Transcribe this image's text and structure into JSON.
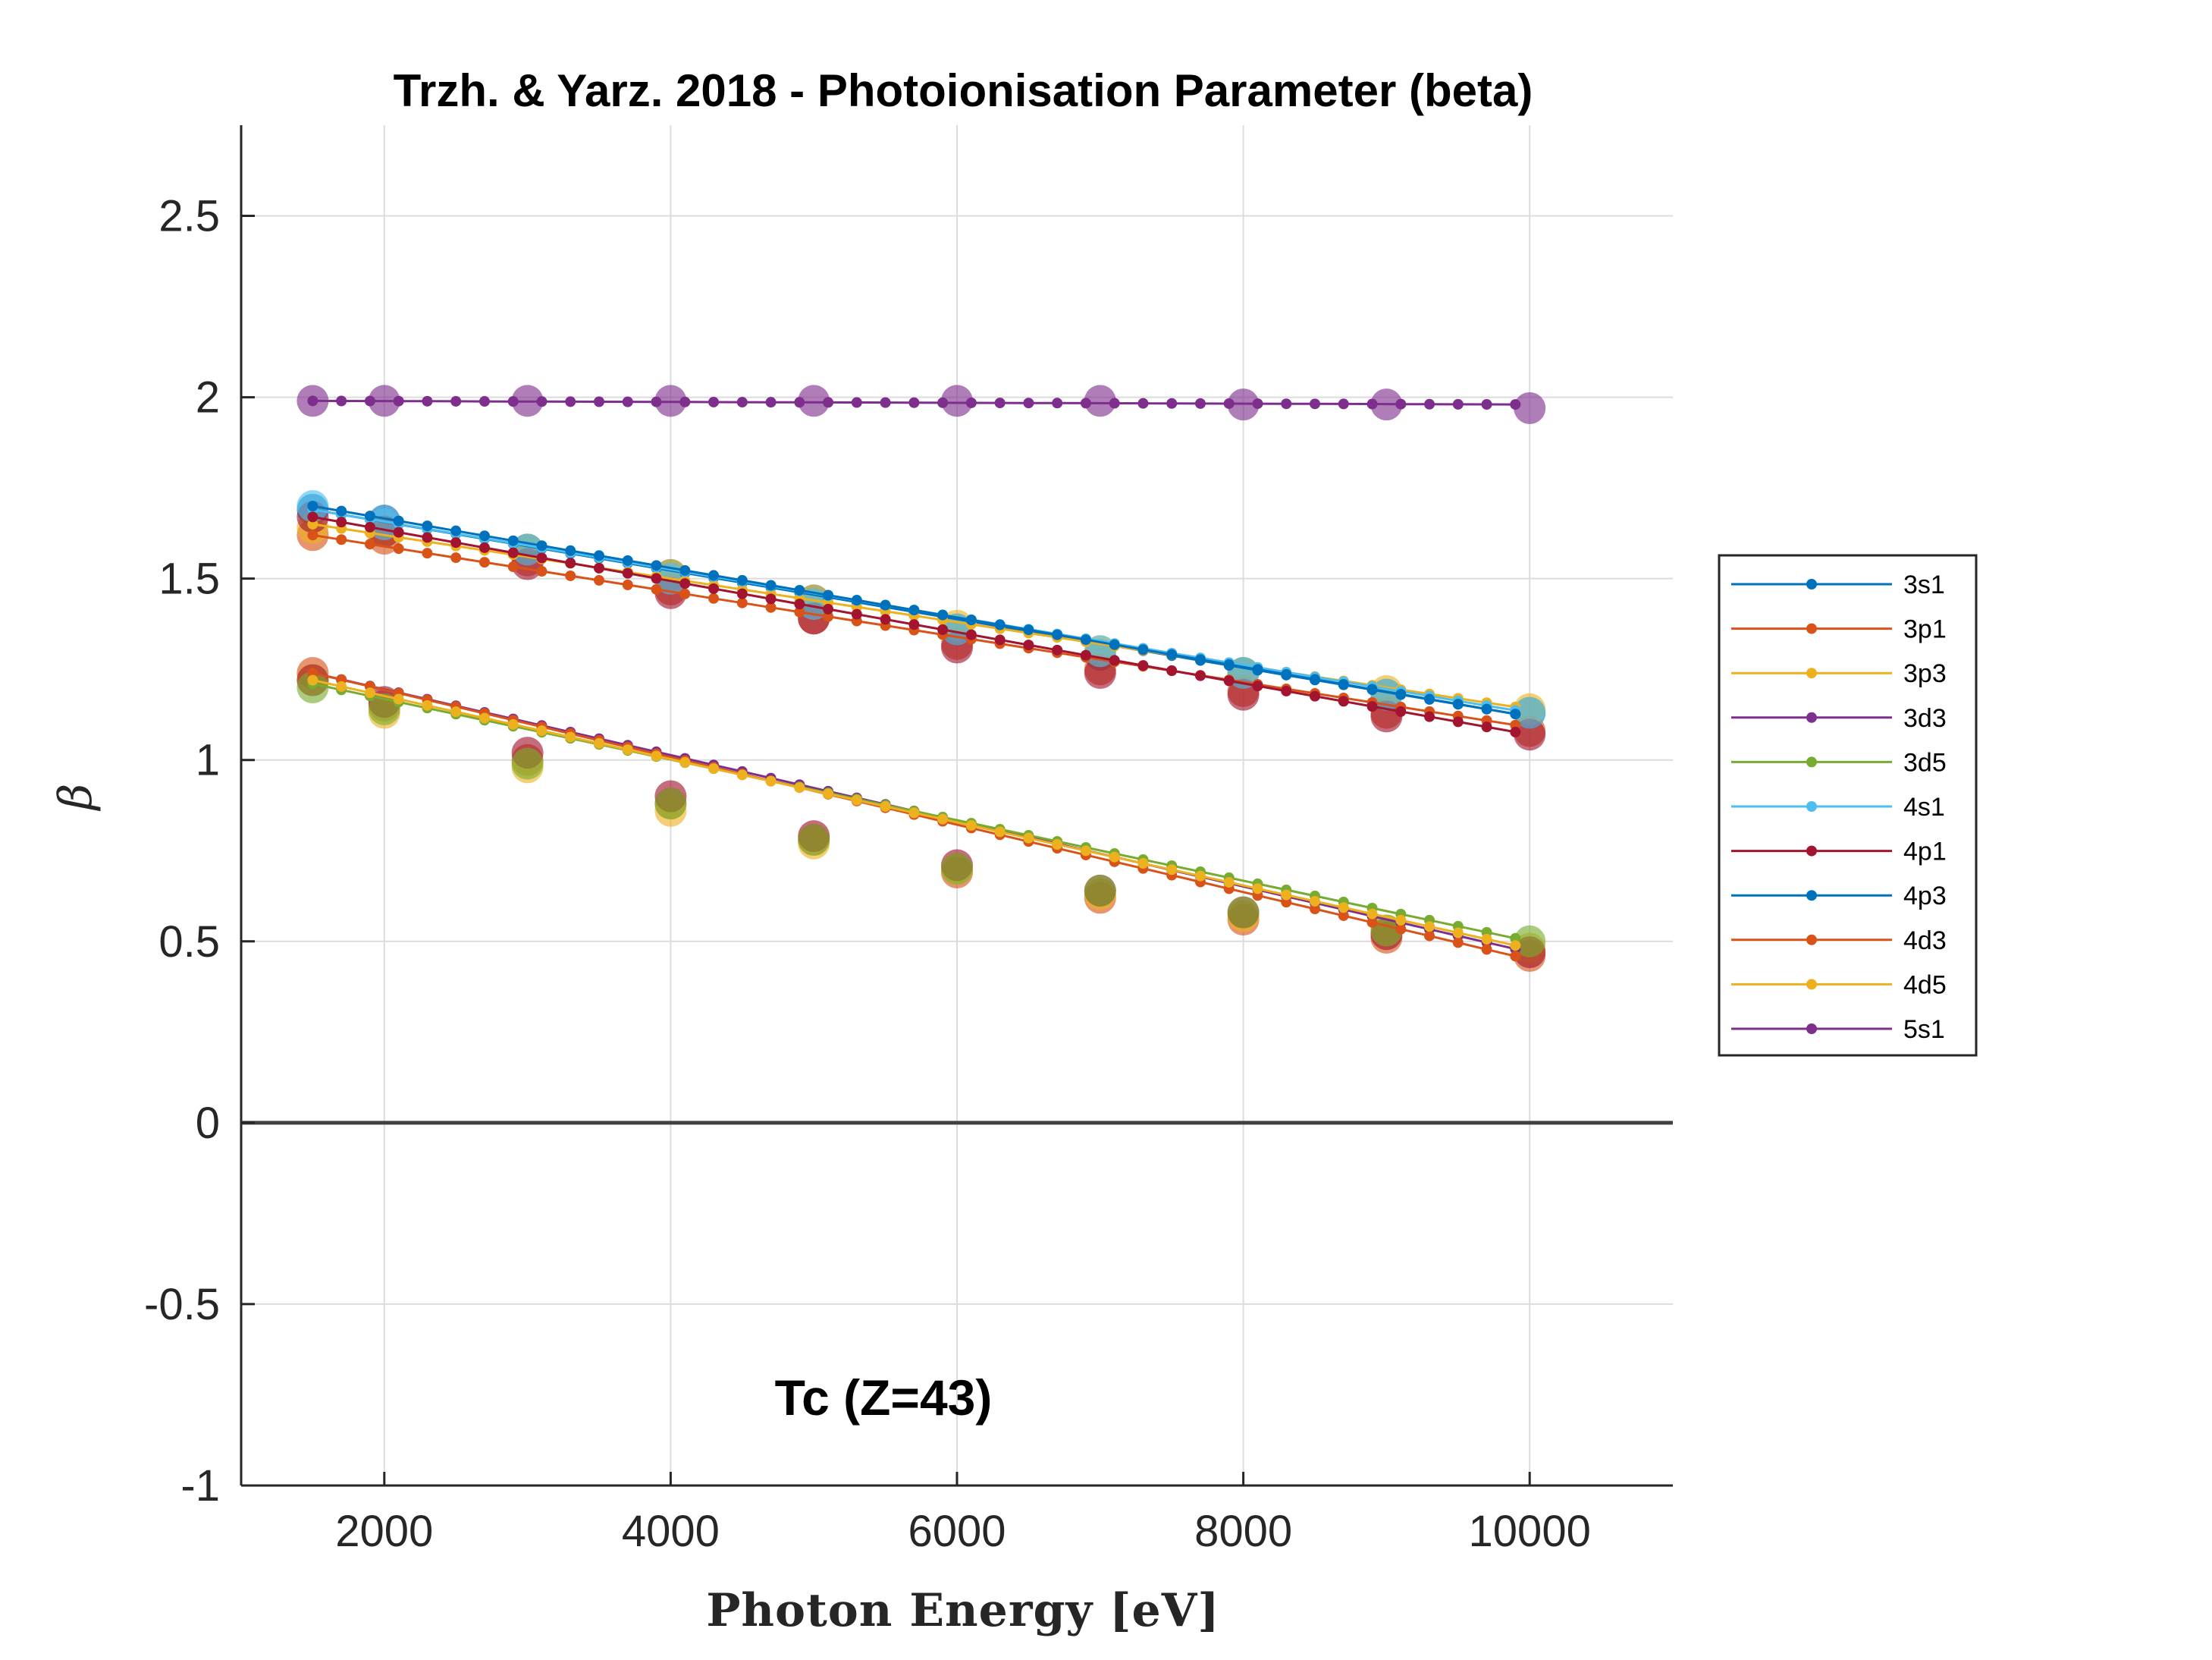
{
  "chart_data": {
    "type": "line",
    "title": "Trzh. & Yarz. 2018 - Photoionisation Parameter (beta)",
    "xlabel": "Photon Energy [eV]",
    "ylabel": "β",
    "xlim": [
      1000,
      11000
    ],
    "ylim": [
      -1,
      2.75
    ],
    "xticks": [
      2000,
      4000,
      6000,
      8000,
      10000
    ],
    "xtick_labels": [
      "2000",
      "4000",
      "6000",
      "8000",
      "10000"
    ],
    "yticks": [
      -1,
      -0.5,
      0,
      0.5,
      1,
      1.5,
      2,
      2.5
    ],
    "ytick_labels": [
      "-1",
      "-0.5",
      "0",
      "0.5",
      "1",
      "1.5",
      "2",
      "2.5"
    ],
    "grid": true,
    "zero_line": true,
    "legend_position": "right, outside",
    "annotation": "Tc (Z=43)",
    "x_start": 1500,
    "x_end": 10000,
    "series": [
      {
        "name": "3s1",
        "color": "#0072BD",
        "start": 1.69,
        "end": 1.12
      },
      {
        "name": "3p1",
        "color": "#D95319",
        "start": 1.62,
        "end": 1.09
      },
      {
        "name": "3p3",
        "color": "#EDB120",
        "start": 1.65,
        "end": 1.14
      },
      {
        "name": "3d3",
        "color": "#7E2F8E",
        "start": 1.24,
        "end": 0.47
      },
      {
        "name": "3d5",
        "color": "#77AC30",
        "start": 1.21,
        "end": 0.5
      },
      {
        "name": "4s1",
        "color": "#4DBEEE",
        "start": 1.69,
        "end": 1.13
      },
      {
        "name": "4p1",
        "color": "#A2142F",
        "start": 1.67,
        "end": 1.07
      },
      {
        "name": "4p3",
        "color": "#0072BD",
        "start": 1.7,
        "end": 1.12
      },
      {
        "name": "4d3",
        "color": "#D95319",
        "start": 1.24,
        "end": 0.45
      },
      {
        "name": "4d5",
        "color": "#EDB120",
        "start": 1.22,
        "end": 0.48
      },
      {
        "name": "5s1",
        "color": "#7E2F8E",
        "start": 1.99,
        "end": 1.98
      }
    ],
    "reference_points": {
      "x": [
        1500,
        2000,
        3000,
        4000,
        5000,
        6000,
        7000,
        8000,
        9000,
        10000
      ],
      "series": [
        {
          "color": "#0072BD",
          "values": [
            1.69,
            1.66,
            1.58,
            1.51,
            1.44,
            1.36,
            1.29,
            1.24,
            1.18,
            1.13
          ]
        },
        {
          "color": "#D95319",
          "values": [
            1.62,
            1.61,
            1.55,
            1.47,
            1.39,
            1.32,
            1.25,
            1.19,
            1.13,
            1.08
          ]
        },
        {
          "color": "#EDB120",
          "values": [
            1.64,
            1.63,
            1.58,
            1.51,
            1.44,
            1.37,
            1.3,
            1.24,
            1.19,
            1.14
          ]
        },
        {
          "color": "#A2142F",
          "values": [
            1.67,
            1.63,
            1.54,
            1.46,
            1.39,
            1.31,
            1.24,
            1.18,
            1.12,
            1.07
          ]
        },
        {
          "color": "#4DBEEE",
          "values": [
            1.7,
            1.65,
            1.58,
            1.5,
            1.43,
            1.36,
            1.3,
            1.24,
            1.18,
            1.13
          ]
        },
        {
          "color": "#D95319",
          "values": [
            1.24,
            1.15,
            1.0,
            0.88,
            0.78,
            0.69,
            0.62,
            0.56,
            0.51,
            0.46
          ]
        },
        {
          "color": "#EDB120",
          "values": [
            1.22,
            1.13,
            0.98,
            0.86,
            0.77,
            0.7,
            0.63,
            0.57,
            0.53,
            0.48
          ]
        },
        {
          "color": "#A2142F",
          "values": [
            1.22,
            1.16,
            1.02,
            0.9,
            0.79,
            0.71,
            0.64,
            0.58,
            0.52,
            0.47
          ]
        },
        {
          "color": "#77AC30",
          "values": [
            1.2,
            1.14,
            0.99,
            0.88,
            0.78,
            0.7,
            0.64,
            0.58,
            0.53,
            0.5
          ]
        },
        {
          "color": "#7E2F8E",
          "values": [
            1.99,
            1.99,
            1.99,
            1.99,
            1.99,
            1.99,
            1.99,
            1.98,
            1.98,
            1.97
          ]
        }
      ]
    }
  }
}
